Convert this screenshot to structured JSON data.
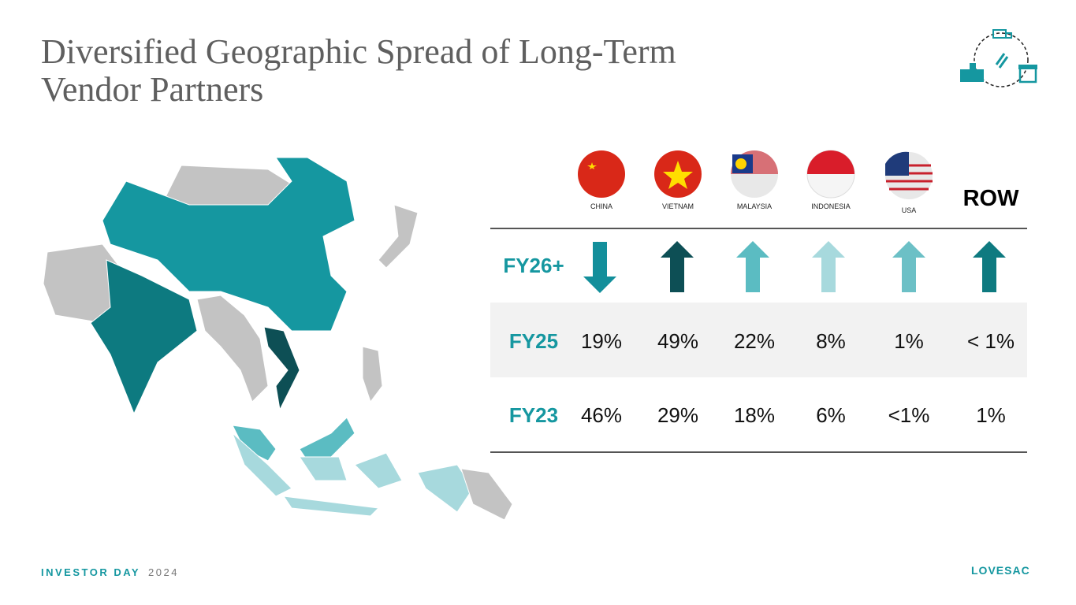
{
  "header": {
    "title": "Diversified Geographic Spread of Long-Term Vendor Partners"
  },
  "table": {
    "columns": [
      "CHINA",
      "VIETNAM",
      "MALAYSIA",
      "INDONESIA",
      "USA",
      "ROW"
    ],
    "rows": [
      {
        "label": "FY26+"
      },
      {
        "label": "FY25",
        "cells": [
          "19%",
          "49%",
          "22%",
          "8%",
          "1%",
          "< 1%"
        ]
      },
      {
        "label": "FY23",
        "cells": [
          "46%",
          "29%",
          "18%",
          "6%",
          "<1%",
          "1%"
        ]
      }
    ]
  },
  "footer": {
    "event": "INVESTOR DAY",
    "year": "2024",
    "brand": "LOVESAC"
  }
}
